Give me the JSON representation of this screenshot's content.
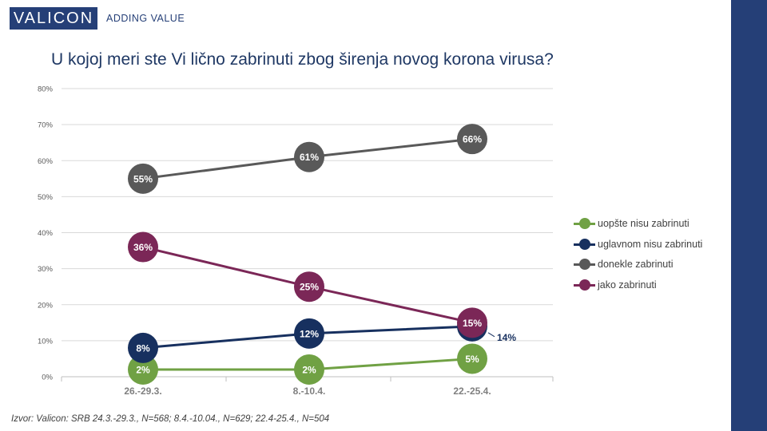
{
  "brand": {
    "logo_text": "VALICON",
    "tagline": "ADDING VALUE"
  },
  "title": "U kojoj meri ste Vi lično zabrinuti zbog širenja novog korona virusa?",
  "source": "Izvor: Valicon: SRB 24.3.-29.3., N=568; 8.4.-10.04., N=629; 22.4-25.4., N=504",
  "colors": {
    "accent": "#253f77",
    "green": "#70a144",
    "navy": "#17305f",
    "gray": "#595959",
    "purple": "#7b2757"
  },
  "chart_data": {
    "type": "line",
    "categories": [
      "26.-29.3.",
      "8.-10.4.",
      "22.-25.4."
    ],
    "ylim": [
      0,
      80
    ],
    "yticks": [
      "0%",
      "10%",
      "20%",
      "30%",
      "40%",
      "50%",
      "60%",
      "70%",
      "80%"
    ],
    "grid": true,
    "legend_position": "right",
    "series": [
      {
        "name": "uopšte nisu zabrinuti",
        "color": "#70a144",
        "values": [
          2,
          2,
          5
        ],
        "labels": [
          "2%",
          "2%",
          "5%"
        ]
      },
      {
        "name": "uglavnom nisu zabrinuti",
        "color": "#17305f",
        "values": [
          8,
          12,
          14
        ],
        "labels": [
          "8%",
          "12%",
          "14%"
        ]
      },
      {
        "name": "donekle zabrinuti",
        "color": "#595959",
        "values": [
          55,
          61,
          66
        ],
        "labels": [
          "55%",
          "61%",
          "66%"
        ]
      },
      {
        "name": "jako zabrinuti",
        "color": "#7b2757",
        "values": [
          36,
          25,
          15
        ],
        "labels": [
          "36%",
          "25%",
          "15%"
        ]
      }
    ]
  }
}
